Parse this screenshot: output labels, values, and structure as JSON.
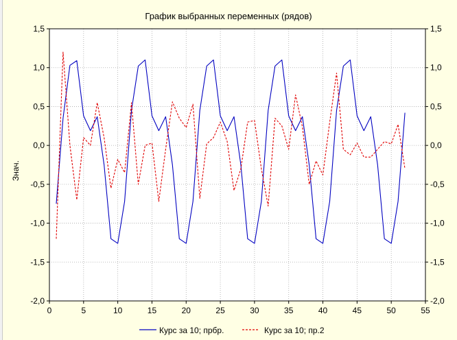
{
  "colors": {
    "background": "#ffffe4",
    "plot_area": "#ffffff",
    "series_1": "#0000c0",
    "series_2": "#e00000",
    "grid": "#a8a8a8"
  },
  "chart_data": {
    "type": "line",
    "title": "График выбранных переменных (рядов)",
    "xlabel": "",
    "ylabel": "Знач.",
    "xlim": [
      0,
      55
    ],
    "ylim": [
      -2.0,
      1.5
    ],
    "x_ticks": [
      "0",
      "5",
      "10",
      "15",
      "20",
      "25",
      "30",
      "35",
      "40",
      "45",
      "50",
      "55"
    ],
    "y_ticks": [
      "1,5",
      "1,0",
      "0,5",
      "0,0",
      "-0,5",
      "-1,0",
      "-1,5",
      "-2,0"
    ],
    "y_tick_values": [
      1.5,
      1.0,
      0.5,
      0.0,
      -0.5,
      -1.0,
      -1.5,
      -2.0
    ],
    "grid": true,
    "legend_position": "bottom",
    "series": [
      {
        "name": "Курс за 10; прбр.",
        "style": "solid",
        "x": [
          1,
          2,
          3,
          4,
          5,
          6,
          7,
          8,
          9,
          10,
          11,
          12,
          13,
          14,
          15,
          16,
          17,
          18,
          19,
          20,
          21,
          22,
          23,
          24,
          25,
          26,
          27,
          28,
          29,
          30,
          31,
          32,
          33,
          34,
          35,
          36,
          37,
          38,
          39,
          40,
          41,
          42,
          43,
          44,
          45,
          46,
          47,
          48,
          49,
          50,
          51,
          52
        ],
        "values": [
          -0.75,
          0.35,
          1.03,
          1.09,
          0.38,
          0.19,
          0.37,
          -0.25,
          -1.2,
          -1.26,
          -0.72,
          0.45,
          1.02,
          1.1,
          0.38,
          0.19,
          0.37,
          -0.25,
          -1.2,
          -1.26,
          -0.72,
          0.45,
          1.02,
          1.1,
          0.38,
          0.19,
          0.37,
          -0.25,
          -1.2,
          -1.26,
          -0.72,
          0.45,
          1.02,
          1.1,
          0.38,
          0.19,
          0.37,
          -0.25,
          -1.2,
          -1.26,
          -0.72,
          0.45,
          1.02,
          1.1,
          0.38,
          0.19,
          0.37,
          -0.25,
          -1.2,
          -1.26,
          -0.72,
          0.42
        ]
      },
      {
        "name": "Курс за 10; пр.2",
        "style": "dashed",
        "x": [
          1,
          2,
          3,
          4,
          5,
          6,
          7,
          8,
          9,
          10,
          11,
          12,
          13,
          14,
          15,
          16,
          17,
          18,
          19,
          20,
          21,
          22,
          23,
          24,
          25,
          26,
          27,
          28,
          29,
          30,
          31,
          32,
          33,
          34,
          35,
          36,
          37,
          38,
          39,
          40,
          41,
          42,
          43,
          44,
          45,
          46,
          47,
          48,
          49,
          50,
          51,
          52
        ],
        "values": [
          -1.2,
          1.2,
          0.0,
          -0.7,
          0.1,
          0.0,
          0.55,
          0.1,
          -0.55,
          -0.18,
          -0.35,
          0.55,
          -0.5,
          0.0,
          0.03,
          -0.72,
          -0.05,
          0.56,
          0.35,
          0.23,
          0.53,
          -0.68,
          0.02,
          0.1,
          0.3,
          0.05,
          -0.58,
          -0.3,
          0.3,
          0.32,
          -0.3,
          -0.78,
          0.35,
          0.25,
          -0.05,
          0.65,
          0.24,
          -0.5,
          -0.2,
          -0.38,
          0.3,
          0.93,
          -0.05,
          -0.12,
          0.03,
          -0.15,
          -0.15,
          -0.05,
          0.05,
          0.02,
          0.27,
          -0.3
        ]
      }
    ]
  }
}
